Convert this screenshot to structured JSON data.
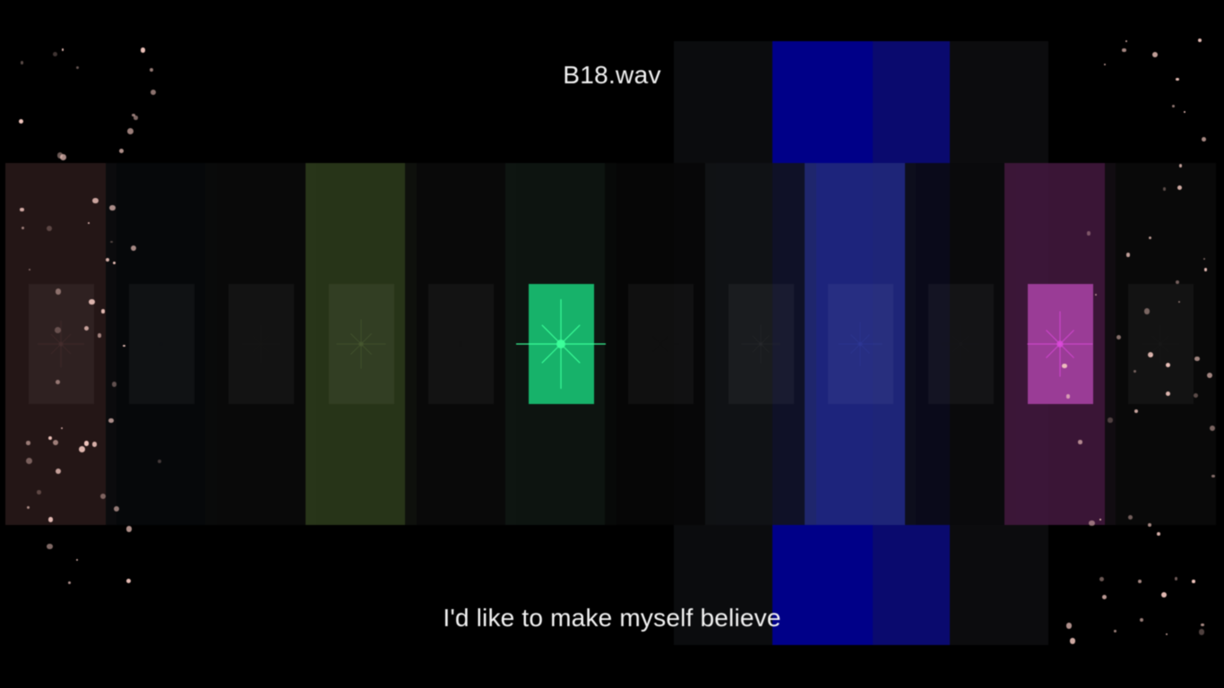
{
  "track": {
    "filename": "B18.wav"
  },
  "lyrics": {
    "current_line": "I'd like to make myself believe"
  },
  "visualizer": {
    "background": "#000000",
    "bands": [
      {
        "name": "band-1",
        "color": "#2a1a1a",
        "level": 0.2,
        "star": "#4a3030"
      },
      {
        "name": "band-2",
        "color": "#07090c",
        "level": 0.03,
        "star": "#111416"
      },
      {
        "name": "band-3",
        "color": "#0b0b0a",
        "level": 0.05,
        "star": "#181816"
      },
      {
        "name": "band-4",
        "color": "#2e3d1c",
        "level": 0.25,
        "star": "#4a5c32"
      },
      {
        "name": "band-5",
        "color": "#0b0b0b",
        "level": 0.04,
        "star": "#141414"
      },
      {
        "name": "band-6",
        "color": "#0f1713",
        "level": 1.0,
        "star": "#3cff9a"
      },
      {
        "name": "band-7",
        "color": "#070707",
        "level": 0.03,
        "star": "#101010"
      },
      {
        "name": "band-8",
        "color": "#121416",
        "level": 0.06,
        "star": "#2b2d30"
      },
      {
        "name": "band-9",
        "color": "#222a7a",
        "level": 0.15,
        "star": "#303a9a"
      },
      {
        "name": "band-10",
        "color": "#0a0a0c",
        "level": 0.04,
        "star": "#18181c"
      },
      {
        "name": "band-11",
        "color": "#44193f",
        "level": 0.55,
        "star": "#e04ae0"
      },
      {
        "name": "band-12",
        "color": "#0a0a0a",
        "level": 0.04,
        "star": "#1a1a1a"
      }
    ],
    "beams": [
      {
        "color": "#0b0c0e"
      },
      {
        "color": "#000088"
      },
      {
        "color": "#0a0a6e"
      },
      {
        "color": "#0c0c0e"
      }
    ],
    "particle_color": "#f4c8c0"
  }
}
